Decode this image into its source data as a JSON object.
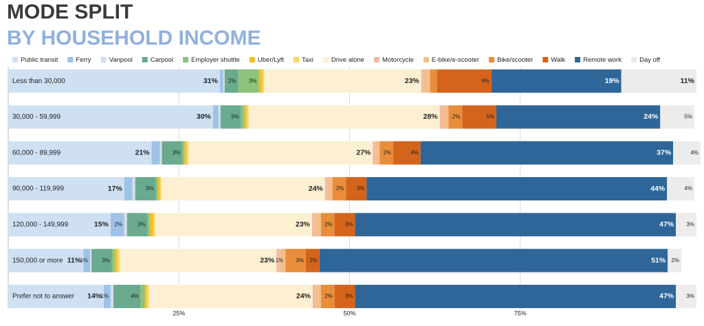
{
  "chart_data": {
    "type": "stacked-bar-horizontal",
    "title": "MODE SPLIT",
    "subtitle": "BY HOUSEHOLD INCOME",
    "categories": [
      "Less than 30,000",
      "30,000 - 59,999",
      "60,000 - 89,999",
      "90,000 - 119,999",
      "120,000 - 149,999",
      "150,000 or more",
      "Prefer not to answer"
    ],
    "xlim": [
      0,
      100
    ],
    "xticks": [
      {
        "value": 25,
        "label": "25%"
      },
      {
        "value": 50,
        "label": "50%"
      },
      {
        "value": 75,
        "label": "75%"
      }
    ],
    "grid": true,
    "legend": "top",
    "series": [
      {
        "name": "Public transit",
        "color": "#cfe0f3",
        "values": [
          31,
          30,
          21,
          17,
          15,
          11,
          14
        ],
        "value_labels": [
          "31%",
          "30%",
          "21%",
          "17%",
          "15%",
          "11%",
          "14%"
        ]
      },
      {
        "name": "Ferry",
        "color": "#9fc3e7",
        "values": [
          0.5,
          0.8,
          1.2,
          1.2,
          2,
          1,
          1
        ],
        "value_labels": [
          null,
          null,
          null,
          null,
          "2%",
          "1%",
          "1%"
        ]
      },
      {
        "name": "Vanpool",
        "color": "#d5dfea",
        "values": [
          0.2,
          0.3,
          0.3,
          0.4,
          0.4,
          0.2,
          0.4
        ]
      },
      {
        "name": "Carpool",
        "color": "#6aaa8f",
        "values": [
          2,
          3,
          3,
          3,
          3,
          3,
          4
        ],
        "value_labels": [
          "2%",
          "3%",
          "3%",
          "3%",
          "3%",
          "3%",
          "4%"
        ]
      },
      {
        "name": "Employer shuttle",
        "color": "#8dc37b",
        "values": [
          3,
          0.5,
          0.3,
          0.3,
          0.3,
          0.4,
          0.6
        ],
        "value_labels": [
          "3%",
          null,
          null,
          null,
          null,
          null,
          null
        ]
      },
      {
        "name": "Uber/Lyft",
        "color": "#f2be2c",
        "values": [
          0.5,
          0.3,
          0.3,
          0.3,
          0.5,
          0.4,
          0.3
        ]
      },
      {
        "name": "Taxi",
        "color": "#f6d95e",
        "values": [
          0.3,
          0.3,
          0.3,
          0.2,
          0.3,
          0.3,
          0.3
        ]
      },
      {
        "name": "Drive alone",
        "color": "#fdf0d2",
        "values": [
          23,
          28,
          27,
          24,
          23,
          23,
          24
        ],
        "value_labels": [
          "23%",
          "28%",
          "27%",
          "24%",
          "23%",
          "23%",
          "24%"
        ]
      },
      {
        "name": "Motorcycle",
        "color": "#f2b9a4",
        "values": [
          0.3,
          0.3,
          0.3,
          0.3,
          0.3,
          0.3,
          0.4
        ]
      },
      {
        "name": "E-bike/e-scooter",
        "color": "#f4be8c",
        "values": [
          1,
          1,
          0.7,
          0.8,
          1,
          1,
          0.8
        ],
        "value_labels": [
          null,
          null,
          null,
          null,
          null,
          "1%",
          null
        ]
      },
      {
        "name": "Bike/scooter",
        "color": "#e98d3a",
        "values": [
          1,
          2,
          2,
          2,
          2,
          3,
          2
        ],
        "value_labels": [
          null,
          "2%",
          "2%",
          "2%",
          "2%",
          "3%",
          "2%"
        ]
      },
      {
        "name": "Walk",
        "color": "#d4641b",
        "values": [
          8,
          5,
          4,
          3,
          3,
          2,
          3
        ],
        "value_labels": [
          "8%",
          "5%",
          "4%",
          "3%",
          "3%",
          "2%",
          "3%"
        ]
      },
      {
        "name": "Remote work",
        "color": "#2f6699",
        "values": [
          19,
          24,
          37,
          44,
          47,
          51,
          47
        ],
        "value_labels": [
          "19%",
          "24%",
          "37%",
          "44%",
          "47%",
          "51%",
          "47%"
        ]
      },
      {
        "name": "Day off",
        "color": "#ececec",
        "values": [
          11,
          5,
          4,
          4,
          3,
          2,
          3
        ],
        "value_labels": [
          "11%",
          "5%",
          "4%",
          "4%",
          "3%",
          "2%",
          "3%"
        ]
      }
    ]
  }
}
